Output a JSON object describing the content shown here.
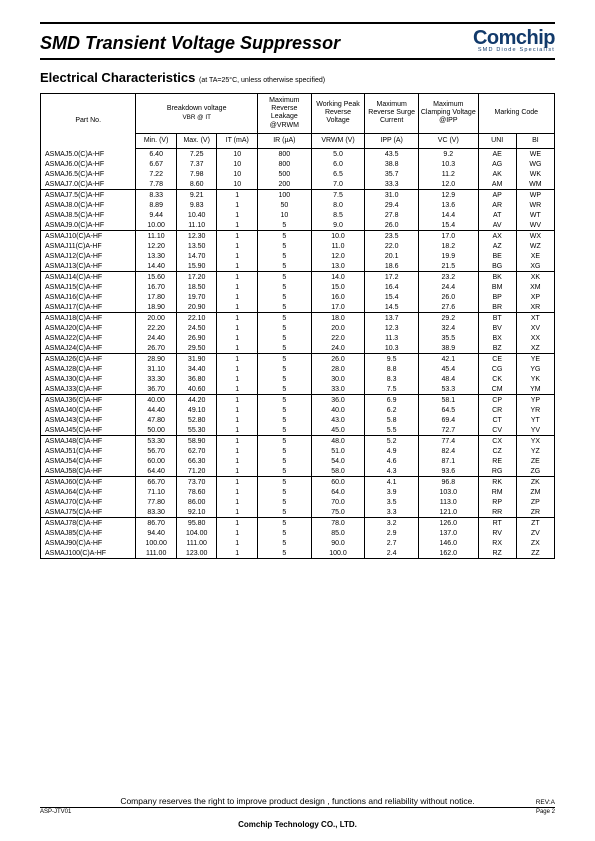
{
  "page": {
    "title": "SMD Transient Voltage Suppressor",
    "logo_main": "Comchip",
    "logo_sub": "SMD Diode Specialist",
    "section_title": "Electrical Characteristics",
    "section_cond": "(at TA=25°C, unless otherwise specified)",
    "footer_note": "Company reserves the right to improve product design , functions and reliability without notice.",
    "footer_rev": "REV:A",
    "footer_asp": "ASP-JTV01",
    "footer_page": "Page 2",
    "footer_company": "Comchip Technology CO., LTD."
  },
  "table": {
    "head": {
      "partno": "Part No.",
      "bv": "Breakdown voltage",
      "bv_sub": "VBR  @ IT",
      "ir": "Maximum Reverse Leakage @VRWM",
      "vwp": "Working Peak Reverse Voltage",
      "ipp": "Maximum Reverse Surge Current",
      "vc": "Maximum Clamping Voltage @IPP",
      "mk": "Marking Code",
      "min": "Min. (V)",
      "max": "Max. (V)",
      "it": "IT (mA)",
      "ir_u": "IR (µA)",
      "vwp_u": "VRWM (V)",
      "ipp_u": "IPP (A)",
      "vc_u": "VC (V)",
      "uni": "UNI",
      "bi": "BI"
    },
    "groups": [
      [
        {
          "p": "ASMAJ5.0(C)A-HF",
          "min": "6.40",
          "max": "7.25",
          "it": "10",
          "ir": "800",
          "vw": "5.0",
          "ipp": "43.5",
          "vc": "9.2",
          "u": "AE",
          "b": "WE"
        },
        {
          "p": "ASMAJ6.0(C)A-HF",
          "min": "6.67",
          "max": "7.37",
          "it": "10",
          "ir": "800",
          "vw": "6.0",
          "ipp": "38.8",
          "vc": "10.3",
          "u": "AG",
          "b": "WG"
        },
        {
          "p": "ASMAJ6.5(C)A-HF",
          "min": "7.22",
          "max": "7.98",
          "it": "10",
          "ir": "500",
          "vw": "6.5",
          "ipp": "35.7",
          "vc": "11.2",
          "u": "AK",
          "b": "WK"
        },
        {
          "p": "ASMAJ7.0(C)A-HF",
          "min": "7.78",
          "max": "8.60",
          "it": "10",
          "ir": "200",
          "vw": "7.0",
          "ipp": "33.3",
          "vc": "12.0",
          "u": "AM",
          "b": "WM"
        }
      ],
      [
        {
          "p": "ASMAJ7.5(C)A-HF",
          "min": "8.33",
          "max": "9.21",
          "it": "1",
          "ir": "100",
          "vw": "7.5",
          "ipp": "31.0",
          "vc": "12.9",
          "u": "AP",
          "b": "WP"
        },
        {
          "p": "ASMAJ8.0(C)A-HF",
          "min": "8.89",
          "max": "9.83",
          "it": "1",
          "ir": "50",
          "vw": "8.0",
          "ipp": "29.4",
          "vc": "13.6",
          "u": "AR",
          "b": "WR"
        },
        {
          "p": "ASMAJ8.5(C)A-HF",
          "min": "9.44",
          "max": "10.40",
          "it": "1",
          "ir": "10",
          "vw": "8.5",
          "ipp": "27.8",
          "vc": "14.4",
          "u": "AT",
          "b": "WT"
        },
        {
          "p": "ASMAJ9.0(C)A-HF",
          "min": "10.00",
          "max": "11.10",
          "it": "1",
          "ir": "5",
          "vw": "9.0",
          "ipp": "26.0",
          "vc": "15.4",
          "u": "AV",
          "b": "WV"
        }
      ],
      [
        {
          "p": "ASMAJ10(C)A-HF",
          "min": "11.10",
          "max": "12.30",
          "it": "1",
          "ir": "5",
          "vw": "10.0",
          "ipp": "23.5",
          "vc": "17.0",
          "u": "AX",
          "b": "WX"
        },
        {
          "p": "ASMAJ11(C)A-HF",
          "min": "12.20",
          "max": "13.50",
          "it": "1",
          "ir": "5",
          "vw": "11.0",
          "ipp": "22.0",
          "vc": "18.2",
          "u": "AZ",
          "b": "WZ"
        },
        {
          "p": "ASMAJ12(C)A-HF",
          "min": "13.30",
          "max": "14.70",
          "it": "1",
          "ir": "5",
          "vw": "12.0",
          "ipp": "20.1",
          "vc": "19.9",
          "u": "BE",
          "b": "XE"
        },
        {
          "p": "ASMAJ13(C)A-HF",
          "min": "14.40",
          "max": "15.90",
          "it": "1",
          "ir": "5",
          "vw": "13.0",
          "ipp": "18.6",
          "vc": "21.5",
          "u": "BG",
          "b": "XG"
        }
      ],
      [
        {
          "p": "ASMAJ14(C)A-HF",
          "min": "15.60",
          "max": "17.20",
          "it": "1",
          "ir": "5",
          "vw": "14.0",
          "ipp": "17.2",
          "vc": "23.2",
          "u": "BK",
          "b": "XK"
        },
        {
          "p": "ASMAJ15(C)A-HF",
          "min": "16.70",
          "max": "18.50",
          "it": "1",
          "ir": "5",
          "vw": "15.0",
          "ipp": "16.4",
          "vc": "24.4",
          "u": "BM",
          "b": "XM"
        },
        {
          "p": "ASMAJ16(C)A-HF",
          "min": "17.80",
          "max": "19.70",
          "it": "1",
          "ir": "5",
          "vw": "16.0",
          "ipp": "15.4",
          "vc": "26.0",
          "u": "BP",
          "b": "XP"
        },
        {
          "p": "ASMAJ17(C)A-HF",
          "min": "18.90",
          "max": "20.90",
          "it": "1",
          "ir": "5",
          "vw": "17.0",
          "ipp": "14.5",
          "vc": "27.6",
          "u": "BR",
          "b": "XR"
        }
      ],
      [
        {
          "p": "ASMAJ18(C)A-HF",
          "min": "20.00",
          "max": "22.10",
          "it": "1",
          "ir": "5",
          "vw": "18.0",
          "ipp": "13.7",
          "vc": "29.2",
          "u": "BT",
          "b": "XT"
        },
        {
          "p": "ASMAJ20(C)A-HF",
          "min": "22.20",
          "max": "24.50",
          "it": "1",
          "ir": "5",
          "vw": "20.0",
          "ipp": "12.3",
          "vc": "32.4",
          "u": "BV",
          "b": "XV"
        },
        {
          "p": "ASMAJ22(C)A-HF",
          "min": "24.40",
          "max": "26.90",
          "it": "1",
          "ir": "5",
          "vw": "22.0",
          "ipp": "11.3",
          "vc": "35.5",
          "u": "BX",
          "b": "XX"
        },
        {
          "p": "ASMAJ24(C)A-HF",
          "min": "26.70",
          "max": "29.50",
          "it": "1",
          "ir": "5",
          "vw": "24.0",
          "ipp": "10.3",
          "vc": "38.9",
          "u": "BZ",
          "b": "XZ"
        }
      ],
      [
        {
          "p": "ASMAJ26(C)A-HF",
          "min": "28.90",
          "max": "31.90",
          "it": "1",
          "ir": "5",
          "vw": "26.0",
          "ipp": "9.5",
          "vc": "42.1",
          "u": "CE",
          "b": "YE"
        },
        {
          "p": "ASMAJ28(C)A-HF",
          "min": "31.10",
          "max": "34.40",
          "it": "1",
          "ir": "5",
          "vw": "28.0",
          "ipp": "8.8",
          "vc": "45.4",
          "u": "CG",
          "b": "YG"
        },
        {
          "p": "ASMAJ30(C)A-HF",
          "min": "33.30",
          "max": "36.80",
          "it": "1",
          "ir": "5",
          "vw": "30.0",
          "ipp": "8.3",
          "vc": "48.4",
          "u": "CK",
          "b": "YK"
        },
        {
          "p": "ASMAJ33(C)A-HF",
          "min": "36.70",
          "max": "40.60",
          "it": "1",
          "ir": "5",
          "vw": "33.0",
          "ipp": "7.5",
          "vc": "53.3",
          "u": "CM",
          "b": "YM"
        }
      ],
      [
        {
          "p": "ASMAJ36(C)A-HF",
          "min": "40.00",
          "max": "44.20",
          "it": "1",
          "ir": "5",
          "vw": "36.0",
          "ipp": "6.9",
          "vc": "58.1",
          "u": "CP",
          "b": "YP"
        },
        {
          "p": "ASMAJ40(C)A-HF",
          "min": "44.40",
          "max": "49.10",
          "it": "1",
          "ir": "5",
          "vw": "40.0",
          "ipp": "6.2",
          "vc": "64.5",
          "u": "CR",
          "b": "YR"
        },
        {
          "p": "ASMAJ43(C)A-HF",
          "min": "47.80",
          "max": "52.80",
          "it": "1",
          "ir": "5",
          "vw": "43.0",
          "ipp": "5.8",
          "vc": "69.4",
          "u": "CT",
          "b": "YT"
        },
        {
          "p": "ASMAJ45(C)A-HF",
          "min": "50.00",
          "max": "55.30",
          "it": "1",
          "ir": "5",
          "vw": "45.0",
          "ipp": "5.5",
          "vc": "72.7",
          "u": "CV",
          "b": "YV"
        }
      ],
      [
        {
          "p": "ASMAJ48(C)A-HF",
          "min": "53.30",
          "max": "58.90",
          "it": "1",
          "ir": "5",
          "vw": "48.0",
          "ipp": "5.2",
          "vc": "77.4",
          "u": "CX",
          "b": "YX"
        },
        {
          "p": "ASMAJ51(C)A-HF",
          "min": "56.70",
          "max": "62.70",
          "it": "1",
          "ir": "5",
          "vw": "51.0",
          "ipp": "4.9",
          "vc": "82.4",
          "u": "CZ",
          "b": "YZ"
        },
        {
          "p": "ASMAJ54(C)A-HF",
          "min": "60.00",
          "max": "66.30",
          "it": "1",
          "ir": "5",
          "vw": "54.0",
          "ipp": "4.6",
          "vc": "87.1",
          "u": "RE",
          "b": "ZE"
        },
        {
          "p": "ASMAJ58(C)A-HF",
          "min": "64.40",
          "max": "71.20",
          "it": "1",
          "ir": "5",
          "vw": "58.0",
          "ipp": "4.3",
          "vc": "93.6",
          "u": "RG",
          "b": "ZG"
        }
      ],
      [
        {
          "p": "ASMAJ60(C)A-HF",
          "min": "66.70",
          "max": "73.70",
          "it": "1",
          "ir": "5",
          "vw": "60.0",
          "ipp": "4.1",
          "vc": "96.8",
          "u": "RK",
          "b": "ZK"
        },
        {
          "p": "ASMAJ64(C)A-HF",
          "min": "71.10",
          "max": "78.60",
          "it": "1",
          "ir": "5",
          "vw": "64.0",
          "ipp": "3.9",
          "vc": "103.0",
          "u": "RM",
          "b": "ZM"
        },
        {
          "p": "ASMAJ70(C)A-HF",
          "min": "77.80",
          "max": "86.00",
          "it": "1",
          "ir": "5",
          "vw": "70.0",
          "ipp": "3.5",
          "vc": "113.0",
          "u": "RP",
          "b": "ZP"
        },
        {
          "p": "ASMAJ75(C)A-HF",
          "min": "83.30",
          "max": "92.10",
          "it": "1",
          "ir": "5",
          "vw": "75.0",
          "ipp": "3.3",
          "vc": "121.0",
          "u": "RR",
          "b": "ZR"
        }
      ],
      [
        {
          "p": "ASMAJ78(C)A-HF",
          "min": "86.70",
          "max": "95.80",
          "it": "1",
          "ir": "5",
          "vw": "78.0",
          "ipp": "3.2",
          "vc": "126.0",
          "u": "RT",
          "b": "ZT"
        },
        {
          "p": "ASMAJ85(C)A-HF",
          "min": "94.40",
          "max": "104.00",
          "it": "1",
          "ir": "5",
          "vw": "85.0",
          "ipp": "2.9",
          "vc": "137.0",
          "u": "RV",
          "b": "ZV"
        },
        {
          "p": "ASMAJ90(C)A-HF",
          "min": "100.00",
          "max": "111.00",
          "it": "1",
          "ir": "5",
          "vw": "90.0",
          "ipp": "2.7",
          "vc": "146.0",
          "u": "RX",
          "b": "ZX"
        },
        {
          "p": "ASMAJ100(C)A-HF",
          "min": "111.00",
          "max": "123.00",
          "it": "1",
          "ir": "5",
          "vw": "100.0",
          "ipp": "2.4",
          "vc": "162.0",
          "u": "RZ",
          "b": "ZZ"
        }
      ]
    ]
  }
}
